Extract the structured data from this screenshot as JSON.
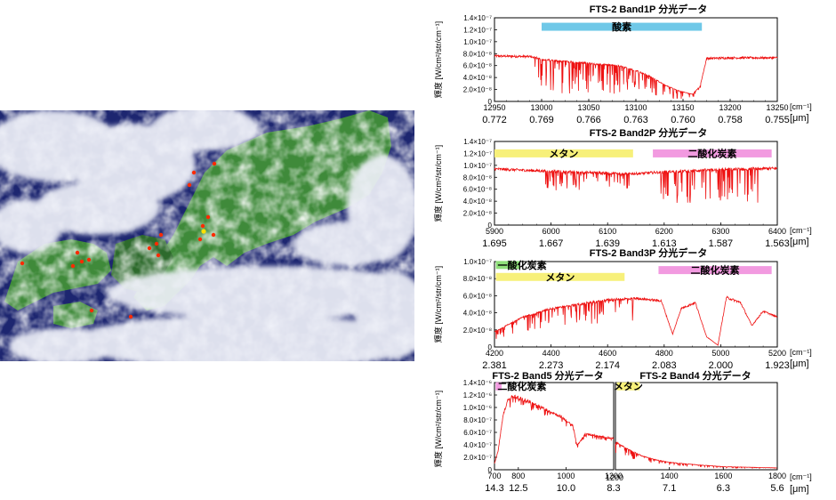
{
  "satellite_image": {
    "colors": {
      "land": "#3f8a3a",
      "land_dark": "#2d6a2c",
      "sea": "#1d2670",
      "cloud": "#eef0f8",
      "marker": "#ff2a00",
      "marker_hi": "#ffe000"
    }
  },
  "chart_data": [
    {
      "type": "line",
      "title": "FTS-2 Band1P 分光データ",
      "ylabel": "輝度 [W/cm²/str/cm⁻¹]",
      "xlim": [
        12950,
        13250
      ],
      "ylim": [
        0,
        1.4e-07
      ],
      "x_ticks": [
        "12950",
        "13000",
        "13050",
        "13100",
        "13150",
        "13200",
        "13250"
      ],
      "x_unit": "[cm⁻¹]",
      "x2_ticks": [
        "0.772",
        "0.769",
        "0.766",
        "0.763",
        "0.760",
        "0.758",
        "0.755"
      ],
      "x2_unit": "[μm]",
      "y_ticks": [
        "0",
        "2.0×10⁻⁸",
        "4.0×10⁻⁸",
        "6.0×10⁻⁸",
        "8.0×10⁻⁸",
        "1.0×10⁻⁷",
        "1.2×10⁻⁷",
        "1.4×10⁻⁷"
      ],
      "bands": [
        {
          "label": "酸素",
          "color": "#6fc8e8",
          "from": 13000,
          "to": 13170,
          "y": 1.25e-07
        }
      ],
      "series": [
        {
          "color": "#ee1111",
          "profile": [
            [
              12950,
              7.6e-08
            ],
            [
              12990,
              7.5e-08
            ],
            [
              13000,
              7e-08
            ],
            [
              13040,
              6.5e-08
            ],
            [
              13080,
              6e-08
            ],
            [
              13100,
              5.2e-08
            ],
            [
              13115,
              4.2e-08
            ],
            [
              13130,
              2.8e-08
            ],
            [
              13145,
              1.8e-08
            ],
            [
              13160,
              1.2e-08
            ],
            [
              13168,
              2.5e-08
            ],
            [
              13175,
              7.2e-08
            ],
            [
              13200,
              7.3e-08
            ],
            [
              13250,
              7.3e-08
            ]
          ],
          "absorb": [
            12990,
            13170
          ],
          "absorb_depth": 0.8
        }
      ]
    },
    {
      "type": "line",
      "title": "FTS-2 Band2P 分光データ",
      "ylabel": "輝度 [W/cm²/str/cm⁻¹]",
      "xlim": [
        5900,
        6400
      ],
      "ylim": [
        0,
        1.4e-07
      ],
      "x_ticks": [
        "5900",
        "6000",
        "6100",
        "6200",
        "6300",
        "6400"
      ],
      "x_unit": "[cm⁻¹]",
      "x2_ticks": [
        "1.695",
        "1.667",
        "1.639",
        "1.613",
        "1.587",
        "1.563"
      ],
      "x2_unit": "[μm]",
      "y_ticks": [
        "0",
        "2.0×10⁻⁸",
        "4.0×10⁻⁸",
        "6.0×10⁻⁸",
        "8.0×10⁻⁸",
        "1.0×10⁻⁷",
        "1.2×10⁻⁷",
        "1.4×10⁻⁷"
      ],
      "bands": [
        {
          "label": "メタン",
          "color": "#f7f07a",
          "from": 5900,
          "to": 6145,
          "y": 1.2e-07
        },
        {
          "label": "二酸化炭素",
          "color": "#f29ae0",
          "from": 6180,
          "to": 6390,
          "y": 1.2e-07
        }
      ],
      "series": [
        {
          "color": "#ee1111",
          "profile": [
            [
              5900,
              9.4e-08
            ],
            [
              6000,
              9e-08
            ],
            [
              6100,
              8.7e-08
            ],
            [
              6150,
              8.6e-08
            ],
            [
              6200,
              8.9e-08
            ],
            [
              6300,
              9.3e-08
            ],
            [
              6400,
              9.5e-08
            ]
          ],
          "absorb": [
            5990,
            6140
          ],
          "absorb_depth": 0.35,
          "absorb2": [
            6190,
            6370
          ],
          "absorb2_depth": 0.6
        }
      ]
    },
    {
      "type": "line",
      "title": "FTS-2 Band3P 分光データ",
      "ylabel": "輝度 [W/cm²/str/cm⁻¹]",
      "xlim": [
        4200,
        5200
      ],
      "ylim": [
        0,
        1e-07
      ],
      "x_ticks": [
        "4200",
        "4400",
        "4600",
        "4800",
        "5000",
        "5200"
      ],
      "x_unit": "[cm⁻¹]",
      "x2_ticks": [
        "2.381",
        "2.273",
        "2.174",
        "2.083",
        "2.000",
        "1.923"
      ],
      "x2_unit": "[μm]",
      "y_ticks": [
        "0",
        "2.0×10⁻⁸",
        "4.0×10⁻⁸",
        "6.0×10⁻⁸",
        "8.0×10⁻⁸",
        "1.0×10⁻⁷"
      ],
      "bands": [
        {
          "label": "一酸化炭素",
          "color": "#8fe07a",
          "from": 4205,
          "to": 4290,
          "y": 9.6e-08
        },
        {
          "label": "メタン",
          "color": "#f7f07a",
          "from": 4205,
          "to": 4660,
          "y": 8.2e-08
        },
        {
          "label": "二酸化炭素",
          "color": "#f29ae0",
          "from": 4780,
          "to": 5180,
          "y": 9e-08
        }
      ],
      "series": [
        {
          "color": "#ee1111",
          "profile": [
            [
              4200,
              1.8e-08
            ],
            [
              4300,
              3.5e-08
            ],
            [
              4400,
              4.5e-08
            ],
            [
              4500,
              5e-08
            ],
            [
              4600,
              5.5e-08
            ],
            [
              4700,
              5.7e-08
            ],
            [
              4790,
              5.4e-08
            ],
            [
              4830,
              1.5e-08
            ],
            [
              4860,
              4.5e-08
            ],
            [
              4910,
              5.2e-08
            ],
            [
              4950,
              1.2e-08
            ],
            [
              4990,
              2e-09
            ],
            [
              5020,
              5.8e-08
            ],
            [
              5070,
              5.2e-08
            ],
            [
              5110,
              2.5e-08
            ],
            [
              5150,
              4.2e-08
            ],
            [
              5200,
              3.5e-08
            ]
          ],
          "absorb": [
            4200,
            4700
          ],
          "absorb_depth": 0.5
        }
      ]
    },
    {
      "type": "line",
      "title": "FTS-2 Band5 分光データ",
      "ylabel": "輝度 [W/cm²/str/cm⁻¹]",
      "xlim": [
        700,
        1200
      ],
      "ylim": [
        0,
        1.4e-06
      ],
      "x_ticks": [
        "700",
        "800",
        "1000",
        "1200"
      ],
      "x_tick_values": [
        700,
        800,
        1000,
        1200
      ],
      "x2_ticks": [
        "14.3",
        "12.5",
        "10.0",
        "8.3"
      ],
      "y_ticks": [
        "0",
        "2.0×10⁻⁷",
        "4.0×10⁻⁷",
        "6.0×10⁻⁷",
        "8.0×10⁻⁷",
        "1.0×10⁻⁶",
        "1.2×10⁻⁶",
        "1.4×10⁻⁶"
      ],
      "bands": [
        {
          "label": "二酸化炭素",
          "color": "#f29ae0",
          "from": 705,
          "to": 730,
          "y": 1.34e-06
        }
      ],
      "series": [
        {
          "color": "#ee1111",
          "profile": [
            [
              700,
              1e-07
            ],
            [
              715,
              3e-07
            ],
            [
              735,
              8.5e-07
            ],
            [
              755,
              1.12e-06
            ],
            [
              780,
              1.18e-06
            ],
            [
              820,
              1.13e-06
            ],
            [
              900,
              1e-06
            ],
            [
              980,
              8.5e-07
            ],
            [
              1030,
              7e-07
            ],
            [
              1045,
              4e-07
            ],
            [
              1060,
              4.5e-07
            ],
            [
              1080,
              5.8e-07
            ],
            [
              1120,
              5.5e-07
            ],
            [
              1200,
              5e-07
            ]
          ],
          "absorb": [
            760,
            1200
          ],
          "absorb_depth": 0.12
        }
      ]
    },
    {
      "type": "line",
      "title": "FTS-2 Band4 分光データ",
      "xlim": [
        1200,
        1800
      ],
      "ylim": [
        0,
        1.4e-06
      ],
      "x_ticks": [
        "1400",
        "1600",
        "1800"
      ],
      "x_tick_values": [
        1400,
        1600,
        1800
      ],
      "x_unit": "[cm⁻¹]",
      "x2_ticks": [
        "7.1",
        "6.3",
        "5.6"
      ],
      "x2_unit": "[μm]",
      "bands": [
        {
          "label": "メタン",
          "color": "#f7f07a",
          "from": 1205,
          "to": 1290,
          "y": 1.34e-06
        }
      ],
      "series": [
        {
          "color": "#ee1111",
          "profile": [
            [
              1200,
              4.5e-07
            ],
            [
              1250,
              3.2e-07
            ],
            [
              1300,
              2.2e-07
            ],
            [
              1350,
              1.6e-07
            ],
            [
              1400,
              1.2e-07
            ],
            [
              1500,
              8e-08
            ],
            [
              1600,
              5e-08
            ],
            [
              1700,
              4e-08
            ],
            [
              1800,
              3e-08
            ]
          ],
          "absorb": [
            1200,
            1800
          ],
          "absorb_depth": 0.4
        }
      ]
    }
  ],
  "extra_ticks": {
    "band5_last_x2": "8.3",
    "band4_first_x": "1200"
  }
}
